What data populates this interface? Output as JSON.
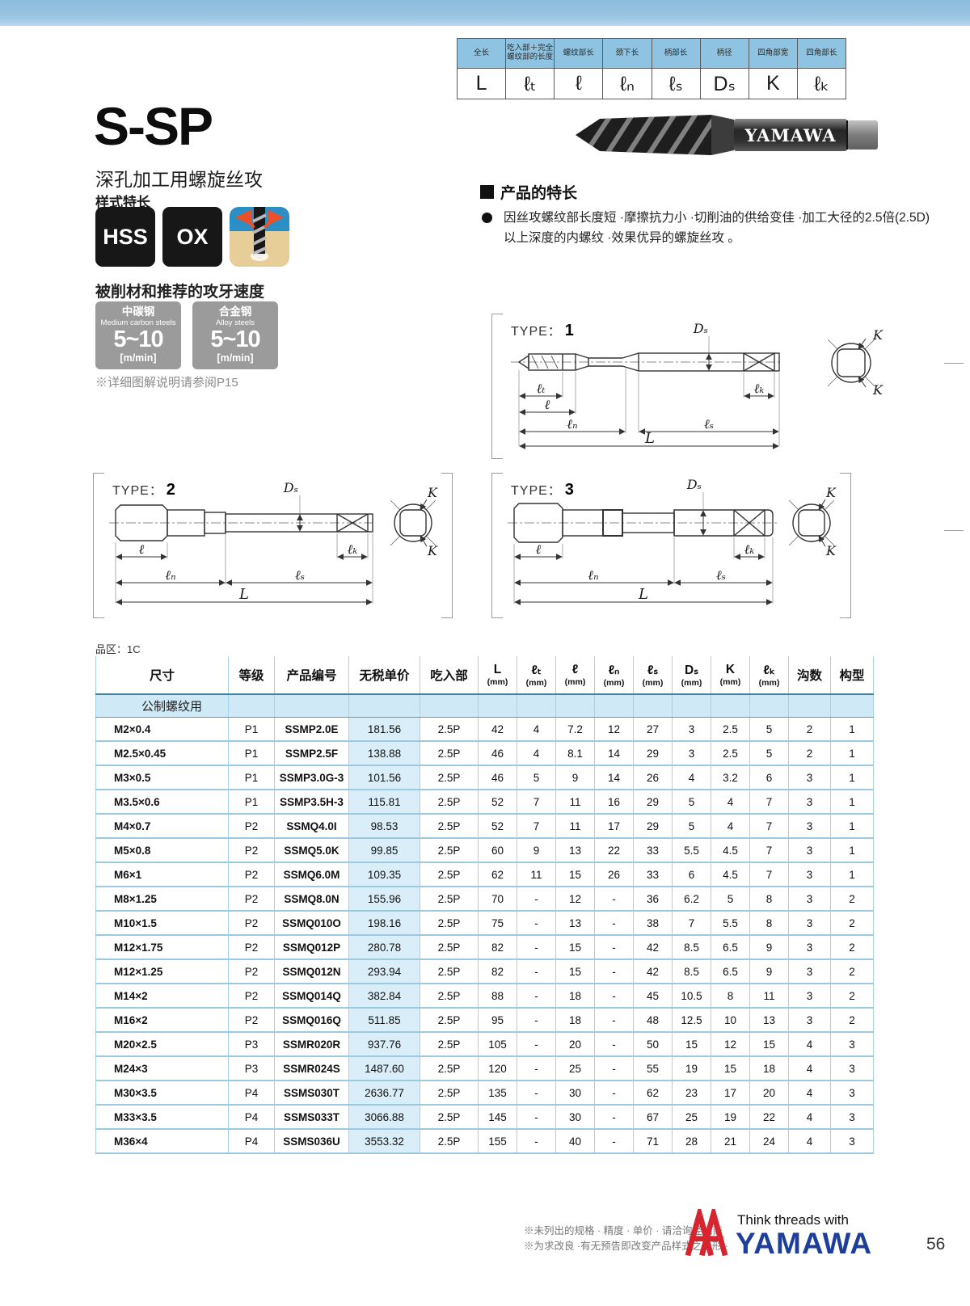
{
  "top_spec_table": {
    "columns": [
      {
        "label": "全长",
        "symbol": "L"
      },
      {
        "label": "吃入部＋完全 螺纹部的长度",
        "symbol": "ℓₜ"
      },
      {
        "label": "螺纹部长",
        "symbol": "ℓ"
      },
      {
        "label": "颈下长",
        "symbol": "ℓₙ"
      },
      {
        "label": "柄部长",
        "symbol": "ℓₛ"
      },
      {
        "label": "柄径",
        "symbol": "Dₛ"
      },
      {
        "label": "四角部宽",
        "symbol": "K"
      },
      {
        "label": "四角部长",
        "symbol": "ℓₖ"
      }
    ]
  },
  "product": {
    "title": "S-SP",
    "subtitle": "深孔加工用螺旋丝攻",
    "style_heading": "样式特长",
    "badges": [
      "HSS",
      "OX"
    ],
    "photo_brand": "YAMAWA"
  },
  "speeds": {
    "heading": "被削材和推荐的攻牙速度",
    "note": "※详细图解说明请参阅P15",
    "boxes": [
      {
        "name": "中碳钢",
        "name_en": "Medium carbon steels",
        "value": "5~10",
        "unit": "[m/min]"
      },
      {
        "name": "合金钢",
        "name_en": "Alloy steels",
        "value": "5~10",
        "unit": "[m/min]"
      }
    ]
  },
  "features": {
    "heading": "产品的特长",
    "bullet": "因丝攻螺纹部长度短 ·摩擦抗力小 ·切削油的供给变佳 ·加工大径的2.5倍(2.5D)以上深度的内螺纹 ·效果优异的螺旋丝攻 。"
  },
  "diagrams": {
    "labels": {
      "ds": "Dₛ",
      "lt": "ℓₜ",
      "l": "ℓ",
      "ln": "ℓₙ",
      "ls": "ℓₛ",
      "L": "L",
      "lk": "ℓₖ",
      "k": "K"
    },
    "types": [
      {
        "prefix": "TYPE：",
        "number": "1"
      },
      {
        "prefix": "TYPE：",
        "number": "2"
      },
      {
        "prefix": "TYPE：",
        "number": "3"
      }
    ]
  },
  "table": {
    "zone_label": "品区：1C",
    "headers": [
      {
        "label": "尺寸"
      },
      {
        "label": "等级"
      },
      {
        "label": "产品编号"
      },
      {
        "label": "无税单价"
      },
      {
        "label": "吃入部"
      },
      {
        "label": "L",
        "unit": "(mm)"
      },
      {
        "label": "ℓₜ",
        "unit": "(mm)"
      },
      {
        "label": "ℓ",
        "unit": "(mm)"
      },
      {
        "label": "ℓₙ",
        "unit": "(mm)"
      },
      {
        "label": "ℓₛ",
        "unit": "(mm)"
      },
      {
        "label": "Dₛ",
        "unit": "(mm)"
      },
      {
        "label": "K",
        "unit": "(mm)"
      },
      {
        "label": "ℓₖ",
        "unit": "(mm)"
      },
      {
        "label": "沟数"
      },
      {
        "label": "构型"
      }
    ],
    "section_label": "公制螺纹用",
    "rows": [
      [
        "M2×0.4",
        "P1",
        "SSMP2.0E",
        "181.56",
        "2.5P",
        "42",
        "4",
        "7.2",
        "12",
        "27",
        "3",
        "2.5",
        "5",
        "2",
        "1"
      ],
      [
        "M2.5×0.45",
        "P1",
        "SSMP2.5F",
        "138.88",
        "2.5P",
        "46",
        "4",
        "8.1",
        "14",
        "29",
        "3",
        "2.5",
        "5",
        "2",
        "1"
      ],
      [
        "M3×0.5",
        "P1",
        "SSMP3.0G-3",
        "101.56",
        "2.5P",
        "46",
        "5",
        "9",
        "14",
        "26",
        "4",
        "3.2",
        "6",
        "3",
        "1"
      ],
      [
        "M3.5×0.6",
        "P1",
        "SSMP3.5H-3",
        "115.81",
        "2.5P",
        "52",
        "7",
        "11",
        "16",
        "29",
        "5",
        "4",
        "7",
        "3",
        "1"
      ],
      [
        "M4×0.7",
        "P2",
        "SSMQ4.0I",
        "98.53",
        "2.5P",
        "52",
        "7",
        "11",
        "17",
        "29",
        "5",
        "4",
        "7",
        "3",
        "1"
      ],
      [
        "M5×0.8",
        "P2",
        "SSMQ5.0K",
        "99.85",
        "2.5P",
        "60",
        "9",
        "13",
        "22",
        "33",
        "5.5",
        "4.5",
        "7",
        "3",
        "1"
      ],
      [
        "M6×1",
        "P2",
        "SSMQ6.0M",
        "109.35",
        "2.5P",
        "62",
        "11",
        "15",
        "26",
        "33",
        "6",
        "4.5",
        "7",
        "3",
        "1"
      ],
      [
        "M8×1.25",
        "P2",
        "SSMQ8.0N",
        "155.96",
        "2.5P",
        "70",
        "-",
        "12",
        "-",
        "36",
        "6.2",
        "5",
        "8",
        "3",
        "2"
      ],
      [
        "M10×1.5",
        "P2",
        "SSMQ010O",
        "198.16",
        "2.5P",
        "75",
        "-",
        "13",
        "-",
        "38",
        "7",
        "5.5",
        "8",
        "3",
        "2"
      ],
      [
        "M12×1.75",
        "P2",
        "SSMQ012P",
        "280.78",
        "2.5P",
        "82",
        "-",
        "15",
        "-",
        "42",
        "8.5",
        "6.5",
        "9",
        "3",
        "2"
      ],
      [
        "M12×1.25",
        "P2",
        "SSMQ012N",
        "293.94",
        "2.5P",
        "82",
        "-",
        "15",
        "-",
        "42",
        "8.5",
        "6.5",
        "9",
        "3",
        "2"
      ],
      [
        "M14×2",
        "P2",
        "SSMQ014Q",
        "382.84",
        "2.5P",
        "88",
        "-",
        "18",
        "-",
        "45",
        "10.5",
        "8",
        "11",
        "3",
        "2"
      ],
      [
        "M16×2",
        "P2",
        "SSMQ016Q",
        "511.85",
        "2.5P",
        "95",
        "-",
        "18",
        "-",
        "48",
        "12.5",
        "10",
        "13",
        "3",
        "2"
      ],
      [
        "M20×2.5",
        "P3",
        "SSMR020R",
        "937.76",
        "2.5P",
        "105",
        "-",
        "20",
        "-",
        "50",
        "15",
        "12",
        "15",
        "4",
        "3"
      ],
      [
        "M24×3",
        "P3",
        "SSMR024S",
        "1487.60",
        "2.5P",
        "120",
        "-",
        "25",
        "-",
        "55",
        "19",
        "15",
        "18",
        "4",
        "3"
      ],
      [
        "M30×3.5",
        "P4",
        "SSMS030T",
        "2636.77",
        "2.5P",
        "135",
        "-",
        "30",
        "-",
        "62",
        "23",
        "17",
        "20",
        "4",
        "3"
      ],
      [
        "M33×3.5",
        "P4",
        "SSMS033T",
        "3066.88",
        "2.5P",
        "145",
        "-",
        "30",
        "-",
        "67",
        "25",
        "19",
        "22",
        "4",
        "3"
      ],
      [
        "M36×4",
        "P4",
        "SSMS036U",
        "3553.32",
        "2.5P",
        "155",
        "-",
        "40",
        "-",
        "71",
        "28",
        "21",
        "24",
        "4",
        "3"
      ]
    ]
  },
  "footer": {
    "notes": [
      "※未列出的规格 · 精度 · 单价 · 请洽询经销商",
      "※为求改良 ·有无预告即改变产品样式之情形 ·"
    ],
    "brand_tagline": "Think threads with",
    "brand_name": "YAMAWA",
    "page_number": "56"
  }
}
